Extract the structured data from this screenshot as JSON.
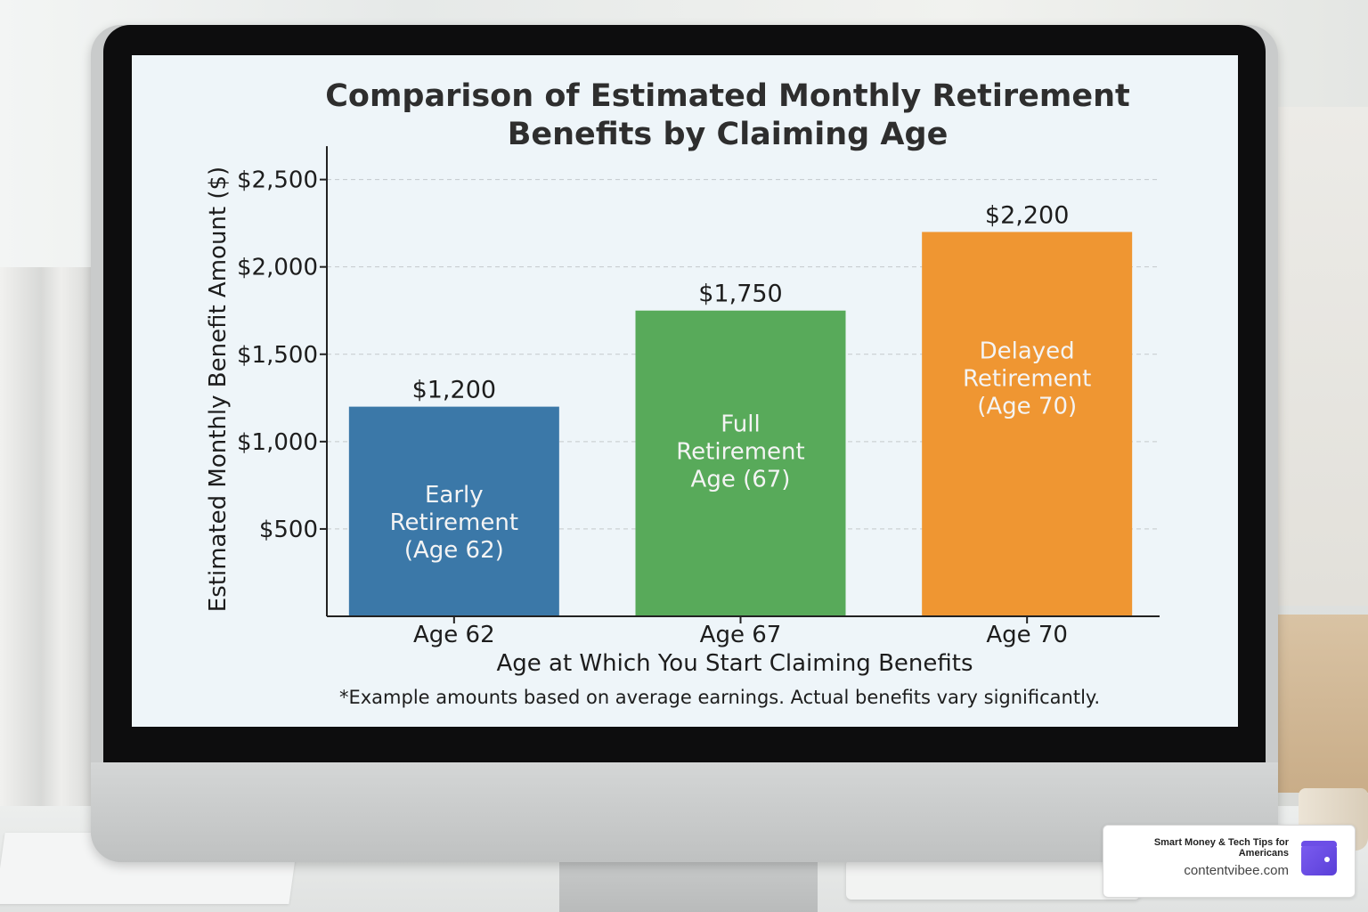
{
  "chart_data": {
    "type": "bar",
    "title": "Comparison of Estimated Monthly Retirement Benefits by Claiming Age",
    "title_lines": [
      "Comparison of Estimated Monthly Retirement",
      "Benefits by Claiming Age"
    ],
    "xlabel": "Age at Which You Start Claiming Benefits",
    "ylabel": "Estimated Monthly Benefit Amount ($)",
    "categories": [
      "Age 62",
      "Age 67",
      "Age 70"
    ],
    "values": [
      1200,
      1750,
      2200
    ],
    "value_labels": [
      "$1,200",
      "$1,750",
      "$2,200"
    ],
    "bar_labels": [
      [
        "Early",
        "Retirement",
        "(Age 62)"
      ],
      [
        "Full",
        "Retirement",
        "Age (67)"
      ],
      [
        "Delayed",
        "Retirement",
        "(Age 70)"
      ]
    ],
    "colors": [
      "#3b78a8",
      "#58aa5a",
      "#ef9632"
    ],
    "ylim": [
      0,
      2650
    ],
    "yticks": [
      500,
      1000,
      1500,
      2000,
      2500
    ],
    "ytick_labels": [
      "$500",
      "$1,000",
      "$1,500",
      "$2,000",
      "$2,500"
    ],
    "grid": true,
    "footnote": "*Example amounts based on average earnings. Actual benefits vary significantly."
  },
  "watermark": {
    "tagline": "Smart Money & Tech Tips for Americans",
    "site": "contentvibee.com",
    "logo_icon": "wallet-icon"
  }
}
